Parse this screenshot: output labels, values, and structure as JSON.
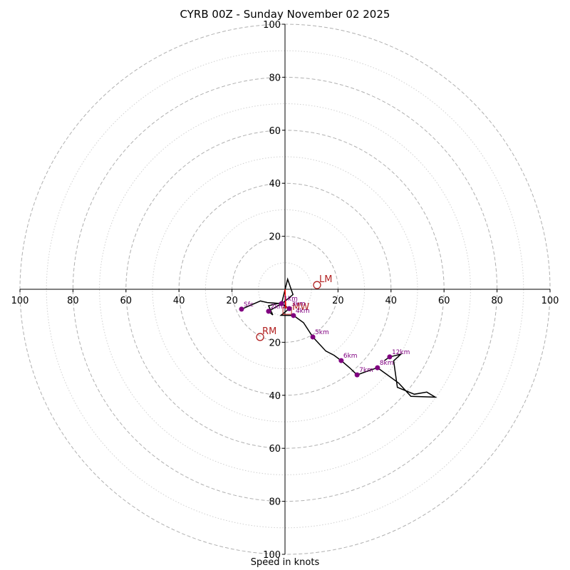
{
  "chart_data": {
    "type": "hodograph",
    "title": "CYRB 00Z - Sunday November 02 2025",
    "xlabel": "Speed in knots",
    "range": 100,
    "rings_major": [
      20,
      40,
      60,
      80,
      100
    ],
    "rings_minor": [
      10,
      30,
      50,
      70,
      90
    ],
    "tick_labels": [
      "20",
      "40",
      "60",
      "80",
      "100"
    ],
    "grid": true,
    "colors": {
      "trace": "#000000",
      "points": "#800080",
      "motion": "#b22222",
      "arrow": "#ff0000",
      "grid": "#b0b0b0"
    },
    "trace": [
      [
        -16.4,
        -7.5
      ],
      [
        -9.3,
        -4.4
      ],
      [
        -6.7,
        -5.0
      ],
      [
        -1.3,
        -5.4
      ],
      [
        1.0,
        3.8
      ],
      [
        3.0,
        -2.0
      ],
      [
        -0.4,
        -4.8
      ],
      [
        -6.2,
        -6.2
      ],
      [
        -4.6,
        -9.7
      ],
      [
        -6.2,
        -8.3
      ],
      [
        -1.3,
        -5.4
      ],
      [
        1.6,
        -7.3
      ],
      [
        -1.5,
        -9.8
      ],
      [
        3.2,
        -9.9
      ],
      [
        7.0,
        -12.6
      ],
      [
        10.5,
        -18.0
      ],
      [
        15.4,
        -23.3
      ],
      [
        18.5,
        -24.9
      ],
      [
        21.2,
        -26.9
      ],
      [
        24.5,
        -29.7
      ],
      [
        27.2,
        -32.3
      ],
      [
        30.5,
        -31.1
      ],
      [
        34.9,
        -29.6
      ],
      [
        42.9,
        -35.4
      ],
      [
        47.5,
        -40.4
      ],
      [
        56.7,
        -40.7
      ],
      [
        53.5,
        -38.8
      ],
      [
        48.8,
        -39.6
      ],
      [
        42.4,
        -37.0
      ],
      [
        41.0,
        -27.0
      ],
      [
        43.7,
        -24.5
      ],
      [
        39.5,
        -25.5
      ],
      [
        37.5,
        -26.9
      ]
    ],
    "points": [
      {
        "label": "Sfc",
        "u": -16.4,
        "v": -7.5
      },
      {
        "label": "1km",
        "u": -1.3,
        "v": -5.4
      },
      {
        "label": "2km",
        "u": -6.2,
        "v": -8.3
      },
      {
        "label": "3km",
        "u": 1.6,
        "v": -7.3
      },
      {
        "label": "4km",
        "u": 3.2,
        "v": -9.9
      },
      {
        "label": "5km",
        "u": 10.5,
        "v": -18.0
      },
      {
        "label": "6km",
        "u": 21.2,
        "v": -26.9
      },
      {
        "label": "7km",
        "u": 27.2,
        "v": -32.3
      },
      {
        "label": "8km",
        "u": 34.9,
        "v": -29.6
      },
      {
        "label": "12km",
        "u": 39.5,
        "v": -25.5
      }
    ],
    "storm_motion": [
      {
        "label": "LM",
        "u": 12.1,
        "v": 1.6
      },
      {
        "label": "RM",
        "u": -9.4,
        "v": -18.0
      }
    ],
    "mean_wind": {
      "label": "MW",
      "u": 0.3,
      "v": -7.3
    }
  }
}
